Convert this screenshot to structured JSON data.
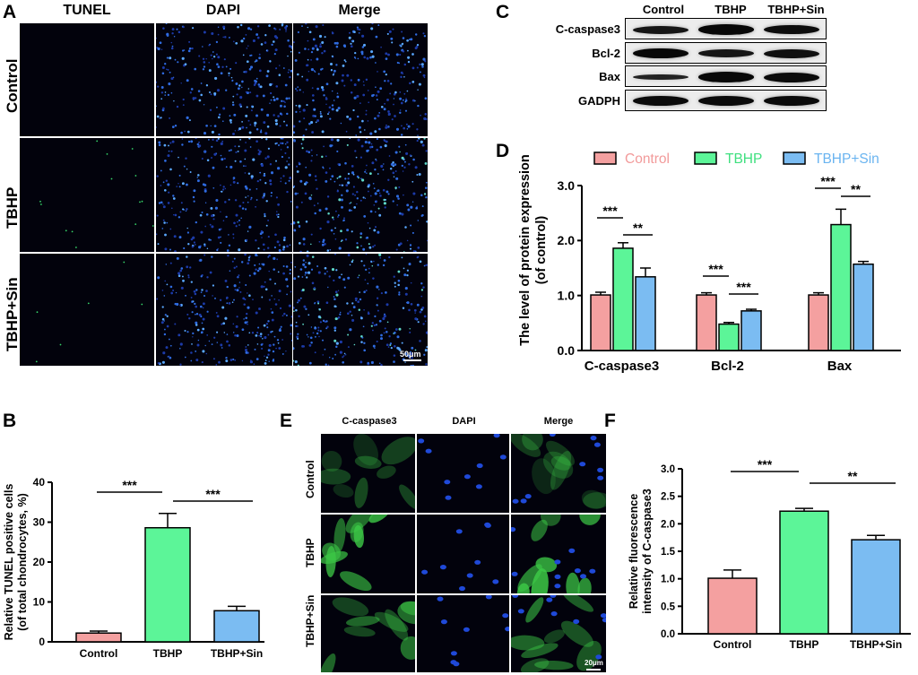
{
  "panels": {
    "A": {
      "label": "A",
      "columns": [
        "TUNEL",
        "DAPI",
        "Merge"
      ],
      "rows": [
        "Control",
        "TBHP",
        "TBHP+Sin"
      ],
      "scale_bar": "50μm"
    },
    "B": {
      "label": "B"
    },
    "C": {
      "label": "C",
      "columns": [
        "Control",
        "TBHP",
        "TBHP+Sin"
      ],
      "rows": [
        "C-caspase3",
        "Bcl-2",
        "Bax",
        "GADPH"
      ]
    },
    "D": {
      "label": "D"
    },
    "E": {
      "label": "E",
      "columns": [
        "C-caspase3",
        "DAPI",
        "Merge"
      ],
      "rows": [
        "Control",
        "TBHP",
        "TBHP+Sin"
      ],
      "scale_bar": "20μm"
    },
    "F": {
      "label": "F"
    }
  },
  "colors": {
    "control": "#f4a0a0",
    "tbhp": "#5cf598",
    "tbhp_sin": "#7bbcf2",
    "legend_control_text": "#f29a9a",
    "legend_tbhp_text": "#3fe07f",
    "legend_sin_text": "#6ab4f0"
  },
  "chart_data": [
    {
      "id": "B",
      "type": "bar",
      "categories": [
        "Control",
        "TBHP",
        "TBHP+Sin"
      ],
      "values": [
        2.2,
        28.6,
        7.8
      ],
      "errors": [
        0.5,
        3.6,
        1.1
      ],
      "ylabel": [
        "Relative TUNEL positive cells",
        "(of total chondrocytes, %)"
      ],
      "ylim": [
        0,
        40
      ],
      "yticks": [
        "0",
        "10",
        "20",
        "30",
        "40"
      ],
      "significance": [
        {
          "from": 0,
          "to": 1,
          "label": "***"
        },
        {
          "from": 1,
          "to": 2,
          "label": "***"
        }
      ]
    },
    {
      "id": "D",
      "type": "bar",
      "categories": [
        "C-caspase3",
        "Bcl-2",
        "Bax"
      ],
      "series": [
        {
          "name": "Control",
          "values": [
            1.01,
            1.01,
            1.01
          ],
          "errors": [
            0.05,
            0.04,
            0.04
          ]
        },
        {
          "name": "TBHP",
          "values": [
            1.86,
            0.48,
            2.29
          ],
          "errors": [
            0.1,
            0.03,
            0.28
          ]
        },
        {
          "name": "TBHP+Sin",
          "values": [
            1.34,
            0.72,
            1.57
          ],
          "errors": [
            0.16,
            0.03,
            0.05
          ]
        }
      ],
      "ylabel": [
        "The level of protein expression",
        "(of control)"
      ],
      "ylim": [
        0,
        3
      ],
      "yticks": [
        "0.0",
        "1.0",
        "2.0",
        "3.0"
      ],
      "legend": "top",
      "significance": [
        {
          "group": 0,
          "from": 0,
          "to": 1,
          "label": "***"
        },
        {
          "group": 0,
          "from": 1,
          "to": 2,
          "label": "**"
        },
        {
          "group": 1,
          "from": 0,
          "to": 1,
          "label": "***"
        },
        {
          "group": 1,
          "from": 1,
          "to": 2,
          "label": "***"
        },
        {
          "group": 2,
          "from": 0,
          "to": 1,
          "label": "***"
        },
        {
          "group": 2,
          "from": 1,
          "to": 2,
          "label": "**"
        }
      ]
    },
    {
      "id": "F",
      "type": "bar",
      "categories": [
        "Control",
        "TBHP",
        "TBHP+Sin"
      ],
      "values": [
        1.01,
        2.23,
        1.71
      ],
      "errors": [
        0.15,
        0.05,
        0.08
      ],
      "ylabel": [
        "Relative fluorescence",
        "intensity of C-caspase3"
      ],
      "ylim": [
        0,
        3
      ],
      "yticks": [
        "0.0",
        "0.5",
        "1.0",
        "1.5",
        "2.0",
        "2.5",
        "3.0"
      ],
      "significance": [
        {
          "from": 0,
          "to": 1,
          "label": "***"
        },
        {
          "from": 1,
          "to": 2,
          "label": "**"
        }
      ]
    }
  ]
}
